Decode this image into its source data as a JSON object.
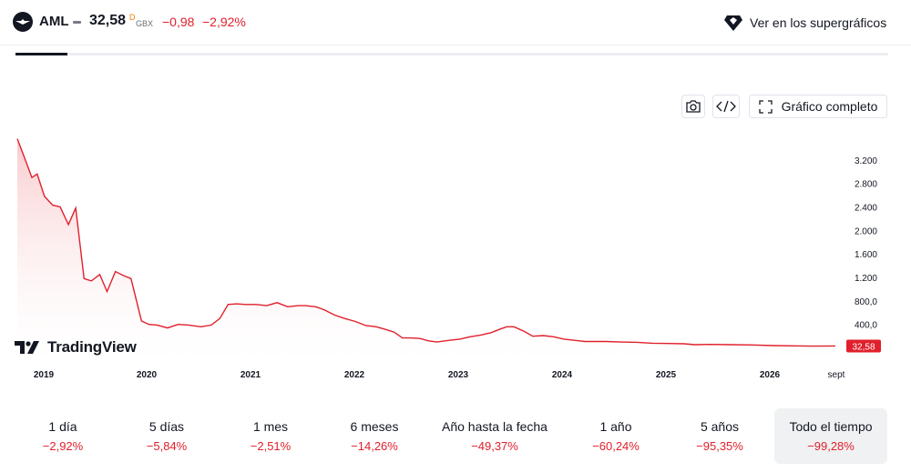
{
  "header": {
    "symbol": "AML",
    "price": "32,58",
    "price_flag": "D",
    "currency": "GBX",
    "change": "−0,98",
    "change_percent": "−2,92%",
    "supercharts_label": "Ver en los supergráficos"
  },
  "toolbar": {
    "snapshot_icon": "camera-icon",
    "embed_icon": "code-icon",
    "fullscreen_label": "Gráfico completo"
  },
  "brand": {
    "name": "TradingView"
  },
  "colors": {
    "line": "#e0202c",
    "fill_top": "#f8c6c9",
    "price_tag": "#e0202c",
    "negative": "#e0202c"
  },
  "chart_data": {
    "type": "area",
    "x_axis_labels": [
      "2019",
      "2020",
      "2021",
      "2022",
      "2023",
      "2024",
      "2025",
      "2026",
      "sept"
    ],
    "y_axis_labels": [
      "3.200",
      "2.800",
      "2.400",
      "2.000",
      "1.600",
      "1.200",
      "800,0",
      "400,0"
    ],
    "y_axis_values": [
      3200,
      2800,
      2400,
      2000,
      1600,
      1200,
      800,
      400
    ],
    "ylim": [
      -115,
      3600
    ],
    "xlim": [
      2018.86,
      2026.7
    ],
    "last_price_label": "32,58",
    "last_price": 32.58,
    "grid": false,
    "series": [
      {
        "x": [
          2018.86,
          2018.92,
          2019.0,
          2019.05,
          2019.12,
          2019.2,
          2019.27,
          2019.35,
          2019.42,
          2019.5,
          2019.57,
          2019.65,
          2019.72,
          2019.8,
          2019.88,
          2019.95,
          2020.05,
          2020.12,
          2020.2,
          2020.3,
          2020.4,
          2020.5,
          2020.62,
          2020.72,
          2020.8,
          2020.88,
          2020.96,
          2021.05,
          2021.15,
          2021.25,
          2021.35,
          2021.45,
          2021.55,
          2021.62,
          2021.72,
          2021.8,
          2021.9,
          2022.0,
          2022.1,
          2022.2,
          2022.3,
          2022.38,
          2022.47,
          2022.55,
          2022.63,
          2022.72,
          2022.8,
          2022.88,
          2023.0,
          2023.1,
          2023.2,
          2023.3,
          2023.4,
          2023.5,
          2023.55,
          2023.62,
          2023.72,
          2023.8,
          2023.9,
          2024.0,
          2024.1,
          2024.2,
          2024.3,
          2024.5,
          2024.65,
          2024.8,
          2024.95,
          2025.1,
          2025.25,
          2025.35,
          2025.5,
          2025.7,
          2025.9,
          2026.1,
          2026.3,
          2026.5,
          2026.7
        ],
        "y": [
          3560,
          3280,
          2900,
          2960,
          2580,
          2430,
          2400,
          2100,
          2380,
          1180,
          1140,
          1250,
          960,
          1300,
          1230,
          1180,
          460,
          400,
          390,
          340,
          400,
          390,
          360,
          390,
          500,
          740,
          750,
          740,
          740,
          720,
          770,
          700,
          720,
          720,
          700,
          650,
          560,
          500,
          450,
          380,
          360,
          320,
          270,
          170,
          170,
          160,
          120,
          100,
          130,
          150,
          190,
          220,
          260,
          330,
          360,
          360,
          280,
          200,
          210,
          190,
          150,
          130,
          110,
          110,
          100,
          95,
          80,
          75,
          70,
          55,
          60,
          55,
          50,
          40,
          35,
          30,
          33
        ]
      }
    ]
  },
  "ranges": [
    {
      "label": "1 día",
      "change": "−2,92%"
    },
    {
      "label": "5 días",
      "change": "−5,84%"
    },
    {
      "label": "1 mes",
      "change": "−2,51%"
    },
    {
      "label": "6 meses",
      "change": "−14,26%"
    },
    {
      "label": "Año hasta la fecha",
      "change": "−49,37%"
    },
    {
      "label": "1 año",
      "change": "−60,24%"
    },
    {
      "label": "5 años",
      "change": "−95,35%"
    },
    {
      "label": "Todo el tiempo",
      "change": "−99,28%",
      "active": true
    }
  ]
}
